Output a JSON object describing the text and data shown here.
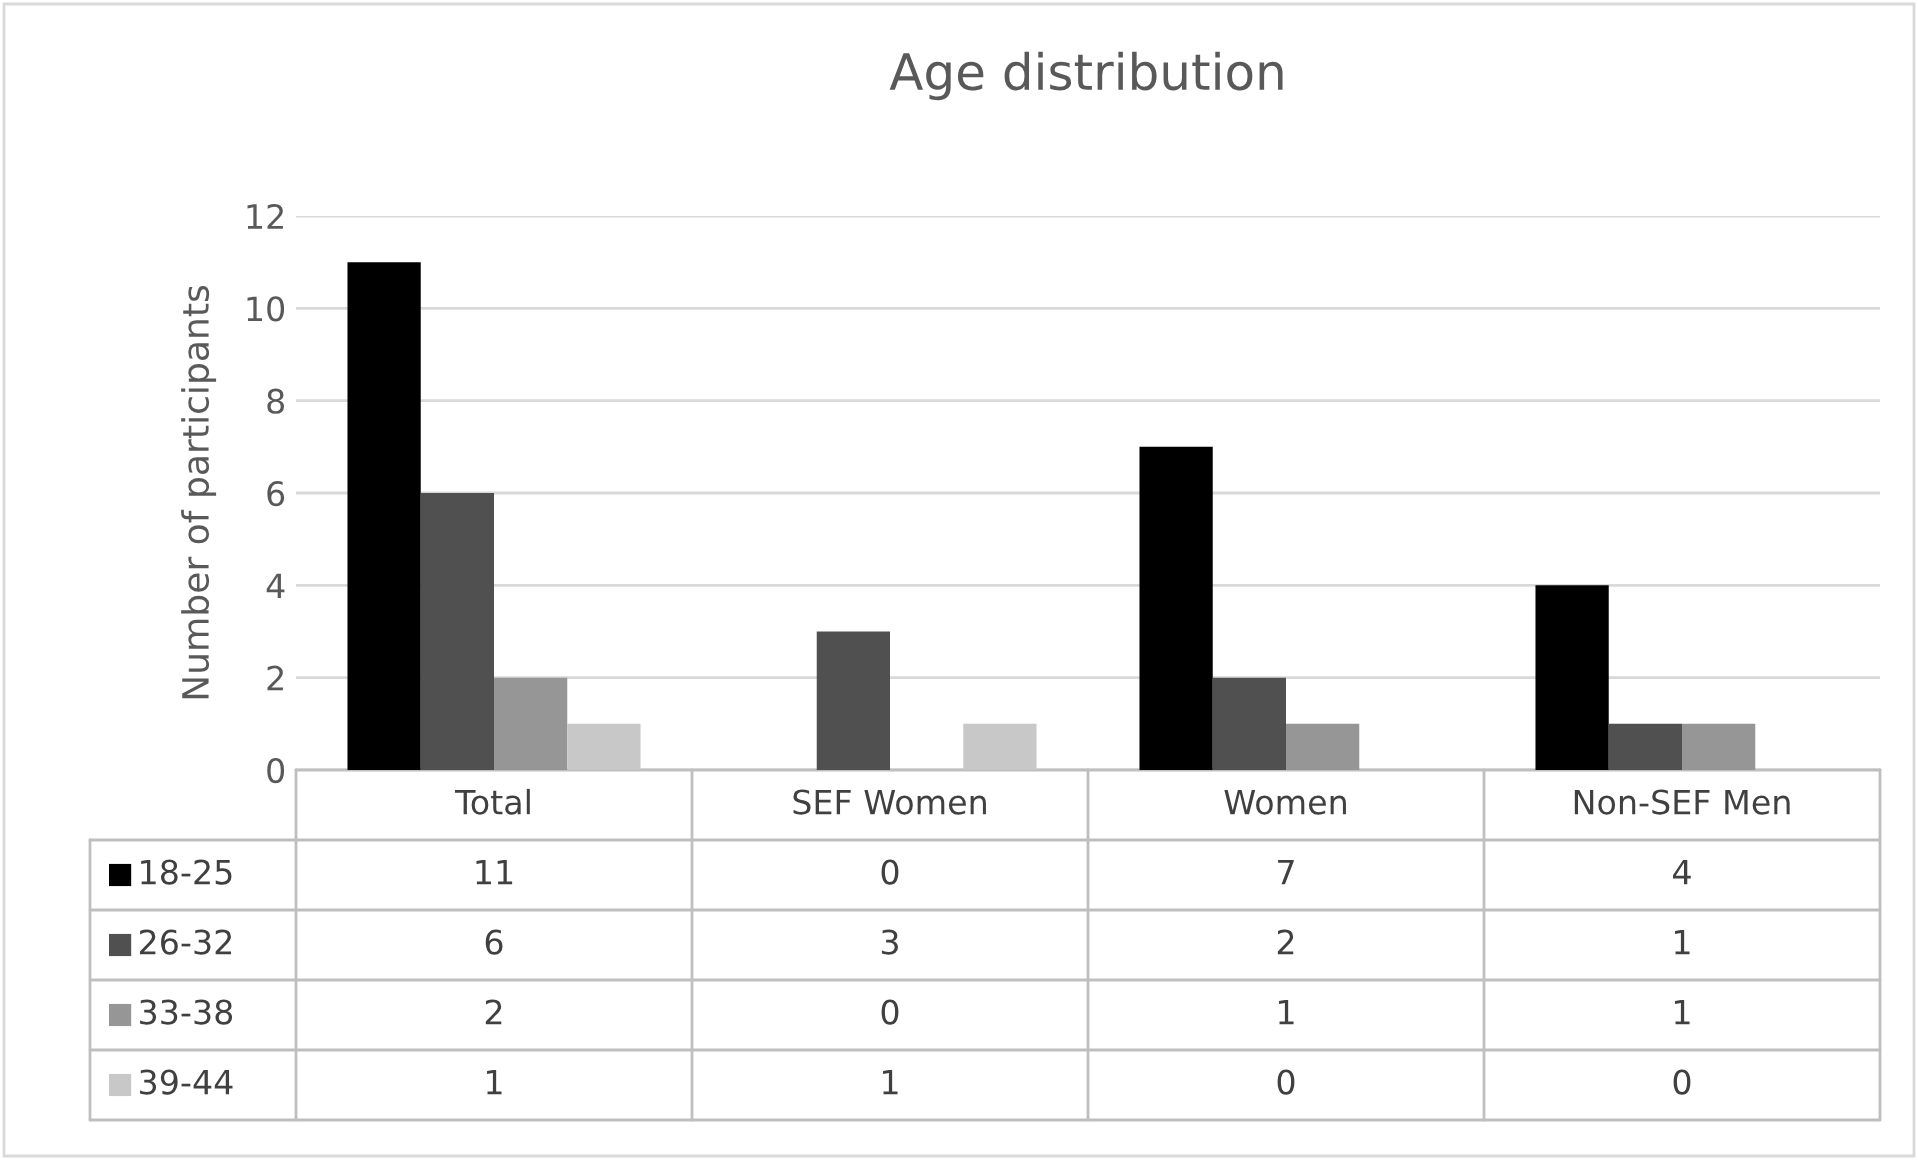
{
  "chart_data": {
    "type": "bar",
    "title": "Age distribution",
    "ylabel": "Number of participants",
    "categories": [
      "Total",
      "SEF Women",
      "Women",
      "Non-SEF Men"
    ],
    "series": [
      {
        "name": "18-25",
        "color": "#000000",
        "values": [
          11,
          0,
          7,
          4
        ]
      },
      {
        "name": "26-32",
        "color": "#505050",
        "values": [
          6,
          3,
          2,
          1
        ]
      },
      {
        "name": "33-38",
        "color": "#969696",
        "values": [
          2,
          0,
          1,
          1
        ]
      },
      {
        "name": "39-44",
        "color": "#c8c8c8",
        "values": [
          1,
          1,
          0,
          0
        ]
      }
    ],
    "ylim": [
      0,
      12
    ],
    "yticks": [
      0,
      2,
      4,
      6,
      8,
      10,
      12
    ],
    "grid": "y",
    "legend": "bottom",
    "data_labels": true
  }
}
